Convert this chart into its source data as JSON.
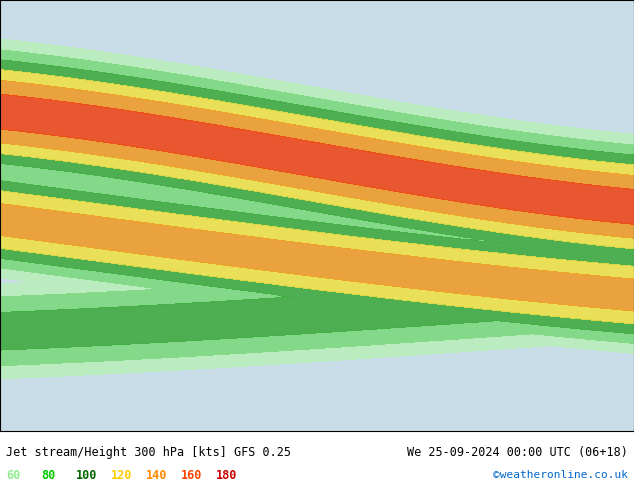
{
  "title_left": "Jet stream/Height 300 hPa [kts] GFS 0.25",
  "title_right": "We 25-09-2024 00:00 UTC (06+18)",
  "credit": "©weatheronline.co.uk",
  "legend_values": [
    60,
    80,
    100,
    120,
    140,
    160,
    180
  ],
  "legend_colors": [
    "#90ee90",
    "#00cc00",
    "#006400",
    "#ffcc00",
    "#ff8800",
    "#ff4400",
    "#cc0000"
  ],
  "bg_color": "#d0e8f0",
  "land_color": "#e8f0d8",
  "map_bg": "#c8dce8",
  "contour_color": "#000000",
  "wind_colors": {
    "60": "#b8f0b8",
    "80": "#78d878",
    "100": "#38a838",
    "120": "#f0e040",
    "140": "#f09820",
    "160": "#f04010",
    "180": "#c00000"
  },
  "figsize": [
    6.34,
    4.9
  ],
  "dpi": 100
}
